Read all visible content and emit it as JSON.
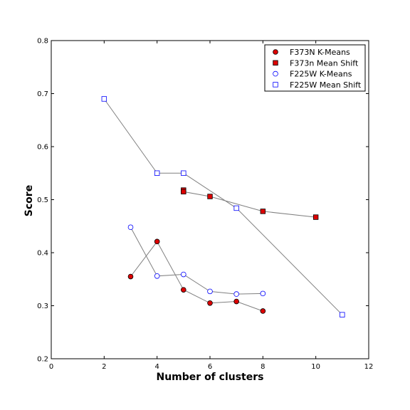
{
  "chart_data": {
    "type": "scatter",
    "xlabel": "Number of clusters",
    "ylabel": "Score",
    "xlim": [
      0,
      12
    ],
    "ylim": [
      0.2,
      0.8
    ],
    "xticks": [
      "0",
      "2",
      "4",
      "6",
      "8",
      "10",
      "12"
    ],
    "yticks": [
      "0.2",
      "0.3",
      "0.4",
      "0.5",
      "0.6",
      "0.7",
      "0.8"
    ],
    "grid": false,
    "legend_position": "top-right",
    "line_color": "#808080",
    "series": [
      {
        "name": "F373N K-Means",
        "marker": "circle",
        "filled": true,
        "color": "#dd0000",
        "x": [
          3,
          4,
          5,
          6,
          7,
          8
        ],
        "y": [
          0.355,
          0.421,
          0.33,
          0.305,
          0.308,
          0.29
        ]
      },
      {
        "name": "F373n Mean Shift",
        "marker": "square",
        "filled": true,
        "color": "#dd0000",
        "x": [
          5,
          5,
          6,
          8,
          10
        ],
        "y": [
          0.518,
          0.515,
          0.506,
          0.478,
          0.467
        ]
      },
      {
        "name": "F225W K-Means",
        "marker": "circle",
        "filled": false,
        "color": "#0000ff",
        "x": [
          3,
          4,
          5,
          6,
          7,
          8
        ],
        "y": [
          0.448,
          0.356,
          0.359,
          0.327,
          0.322,
          0.323
        ]
      },
      {
        "name": "F225W Mean Shift",
        "marker": "square",
        "filled": false,
        "color": "#0000ff",
        "x": [
          2,
          4,
          5,
          7,
          11
        ],
        "y": [
          0.69,
          0.55,
          0.55,
          0.484,
          0.283
        ]
      }
    ]
  }
}
